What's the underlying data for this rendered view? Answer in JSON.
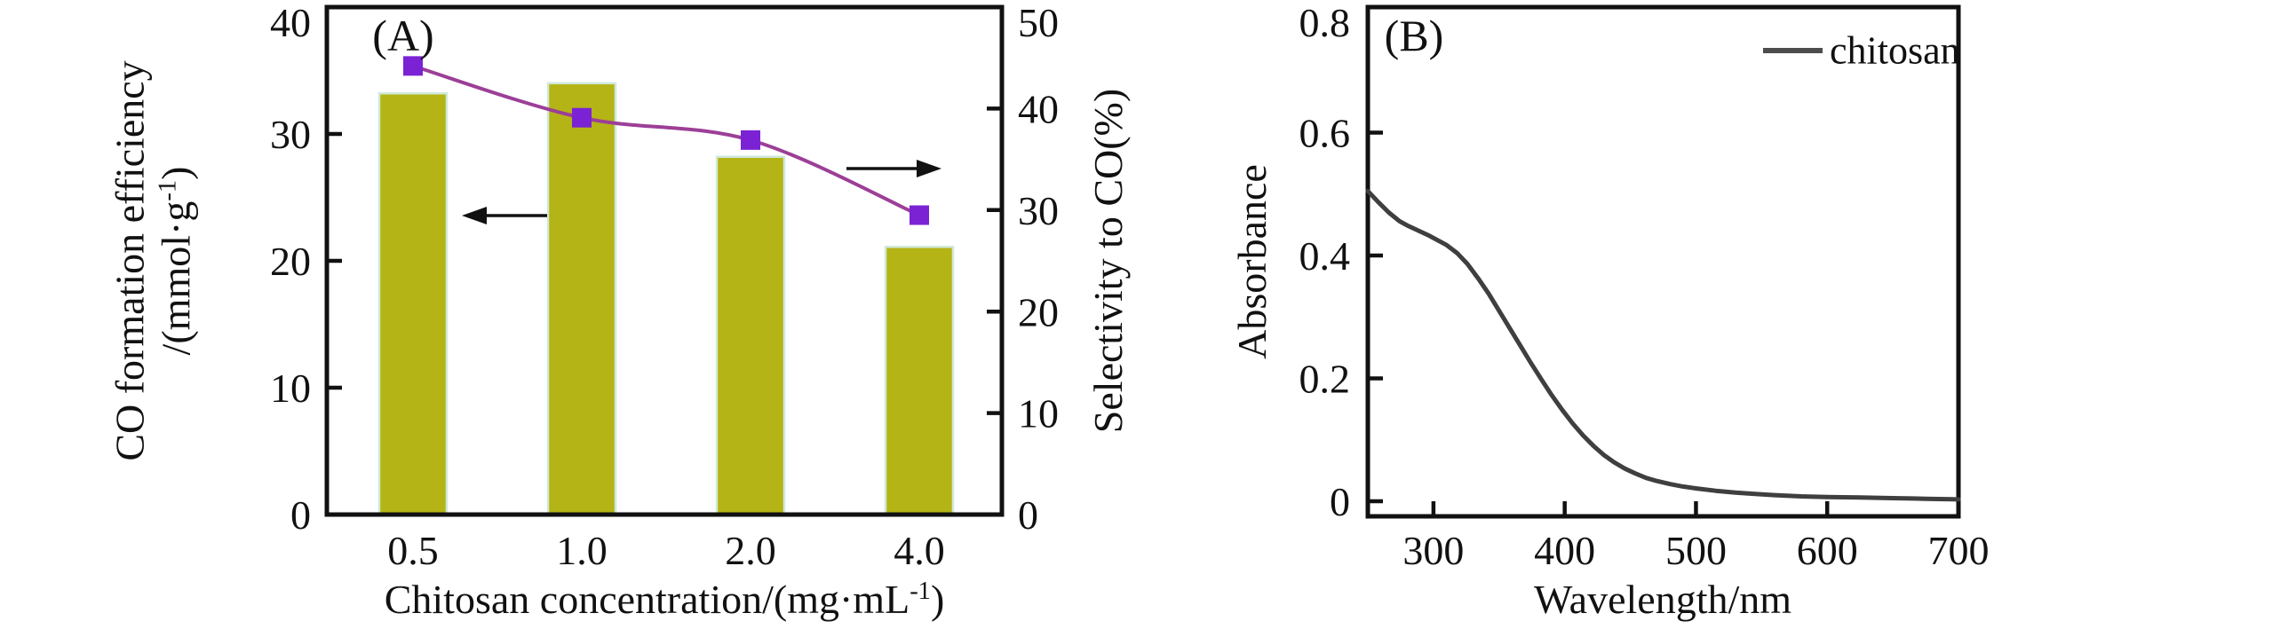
{
  "figure": {
    "background_color": "#ffffff",
    "panel_a": {
      "label": "(A)",
      "y_left_title_line1": "CO formation efficiency",
      "y_left_title_line2": {
        "pre": "/(mmol·g",
        "sup": "-1",
        "post": ")"
      },
      "y_right_title": "Selectivity to CO(%)",
      "x_title": {
        "pre": "Chitosan concentration/(mg·mL",
        "sup": "-1",
        "post": ")"
      }
    },
    "panel_b": {
      "label": "(B)",
      "y_title": "Absorbance",
      "x_title": "Wavelength/nm",
      "legend_label": "chitosan"
    }
  },
  "chart_data": [
    {
      "type": "bar",
      "panel": "A",
      "title": "(A)",
      "categories": [
        "0.5",
        "1.0",
        "2.0",
        "4.0"
      ],
      "series": [
        {
          "name": "CO formation efficiency",
          "plot": "bar",
          "axis": "left",
          "values": [
            33.2,
            34.0,
            28.2,
            21.1
          ],
          "bar_color": "#b5b416",
          "bar_edge_color": "#cfe9da"
        },
        {
          "name": "Selectivity to CO",
          "plot": "line",
          "axis": "right",
          "values": [
            44.2,
            39.1,
            36.9,
            29.5
          ],
          "line_color": "#9c3f97",
          "marker": "square",
          "marker_color": "#7b22d5"
        }
      ],
      "xlabel": "Chitosan concentration/(mg·mL⁻¹)",
      "ylabel_left": "CO formation efficiency/(mmol·g⁻¹)",
      "ylabel_right": "Selectivity to CO(%)",
      "ylim_left": [
        0,
        40
      ],
      "yticks_left": {
        "values": [
          0,
          10,
          20,
          30,
          40
        ],
        "labels": [
          "0",
          "10",
          "20",
          "30",
          "40"
        ]
      },
      "ylim_right": [
        0,
        50
      ],
      "yticks_right": {
        "values": [
          0,
          10,
          20,
          30,
          40,
          50
        ],
        "labels": [
          "0",
          "10",
          "20",
          "30",
          "40",
          "50"
        ]
      },
      "grid": false,
      "annotations": [
        {
          "type": "arrow",
          "points": "left",
          "meaning": "bars read on left axis"
        },
        {
          "type": "arrow",
          "points": "right",
          "meaning": "line reads on right axis"
        }
      ]
    },
    {
      "type": "line",
      "panel": "B",
      "title": "(B)",
      "series": [
        {
          "name": "chitosan",
          "color": "#3f3f3f",
          "x": [
            250,
            258,
            266,
            274,
            280,
            288,
            296,
            304,
            310,
            318,
            326,
            334,
            342,
            350,
            358,
            366,
            374,
            382,
            390,
            398,
            406,
            414,
            422,
            430,
            438,
            446,
            454,
            462,
            470,
            480,
            490,
            500,
            515,
            530,
            545,
            560,
            580,
            600,
            625,
            650,
            675,
            700
          ],
          "y": [
            0.505,
            0.487,
            0.47,
            0.456,
            0.449,
            0.441,
            0.433,
            0.424,
            0.417,
            0.404,
            0.386,
            0.363,
            0.338,
            0.31,
            0.282,
            0.254,
            0.226,
            0.199,
            0.173,
            0.149,
            0.127,
            0.107,
            0.09,
            0.075,
            0.063,
            0.053,
            0.045,
            0.038,
            0.033,
            0.028,
            0.024,
            0.021,
            0.017,
            0.014,
            0.012,
            0.01,
            0.008,
            0.007,
            0.006,
            0.005,
            0.004,
            0.003
          ]
        }
      ],
      "xlabel": "Wavelength/nm",
      "ylabel": "Absorbance",
      "xlim": [
        250,
        700
      ],
      "xticks": {
        "values": [
          300,
          400,
          500,
          600,
          700
        ],
        "labels": [
          "300",
          "400",
          "500",
          "600",
          "700"
        ]
      },
      "ylim": [
        0,
        0.8
      ],
      "yticks": {
        "values": [
          0,
          0.2,
          0.4,
          0.6,
          0.8
        ],
        "labels": [
          "0",
          "0.2",
          "0.4",
          "0.6",
          "0.8"
        ]
      },
      "legend": {
        "position": "top-right",
        "entries": [
          "chitosan"
        ]
      },
      "grid": false
    }
  ]
}
